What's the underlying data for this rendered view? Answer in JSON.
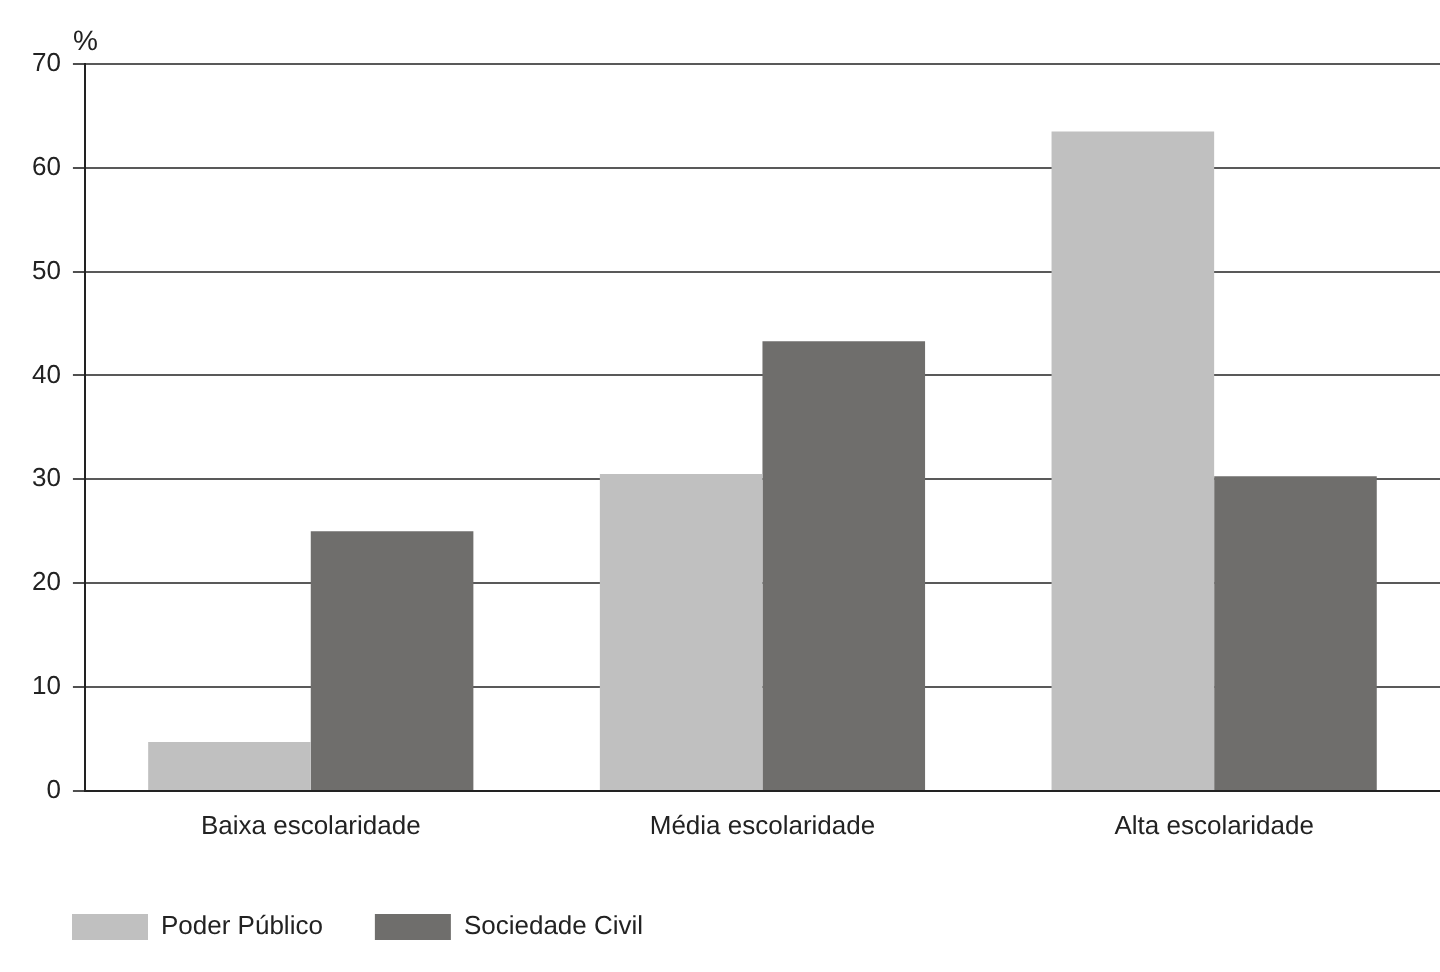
{
  "chart_data": {
    "type": "bar",
    "ylabel": "%",
    "categories": [
      "Baixa escolaridade",
      "Média escolaridade",
      "Alta escolaridade"
    ],
    "series": [
      {
        "name": "Poder Público",
        "color": "#c0c0c0",
        "values": [
          4.7,
          30.5,
          63.5
        ]
      },
      {
        "name": "Sociedade Civil",
        "color": "#6f6e6c",
        "values": [
          25,
          43.3,
          30.3
        ]
      }
    ],
    "ylim": [
      0,
      70
    ],
    "yticks": [
      0,
      10,
      20,
      30,
      40,
      50,
      60,
      70
    ],
    "grid": "y",
    "legend": "bottom left"
  }
}
